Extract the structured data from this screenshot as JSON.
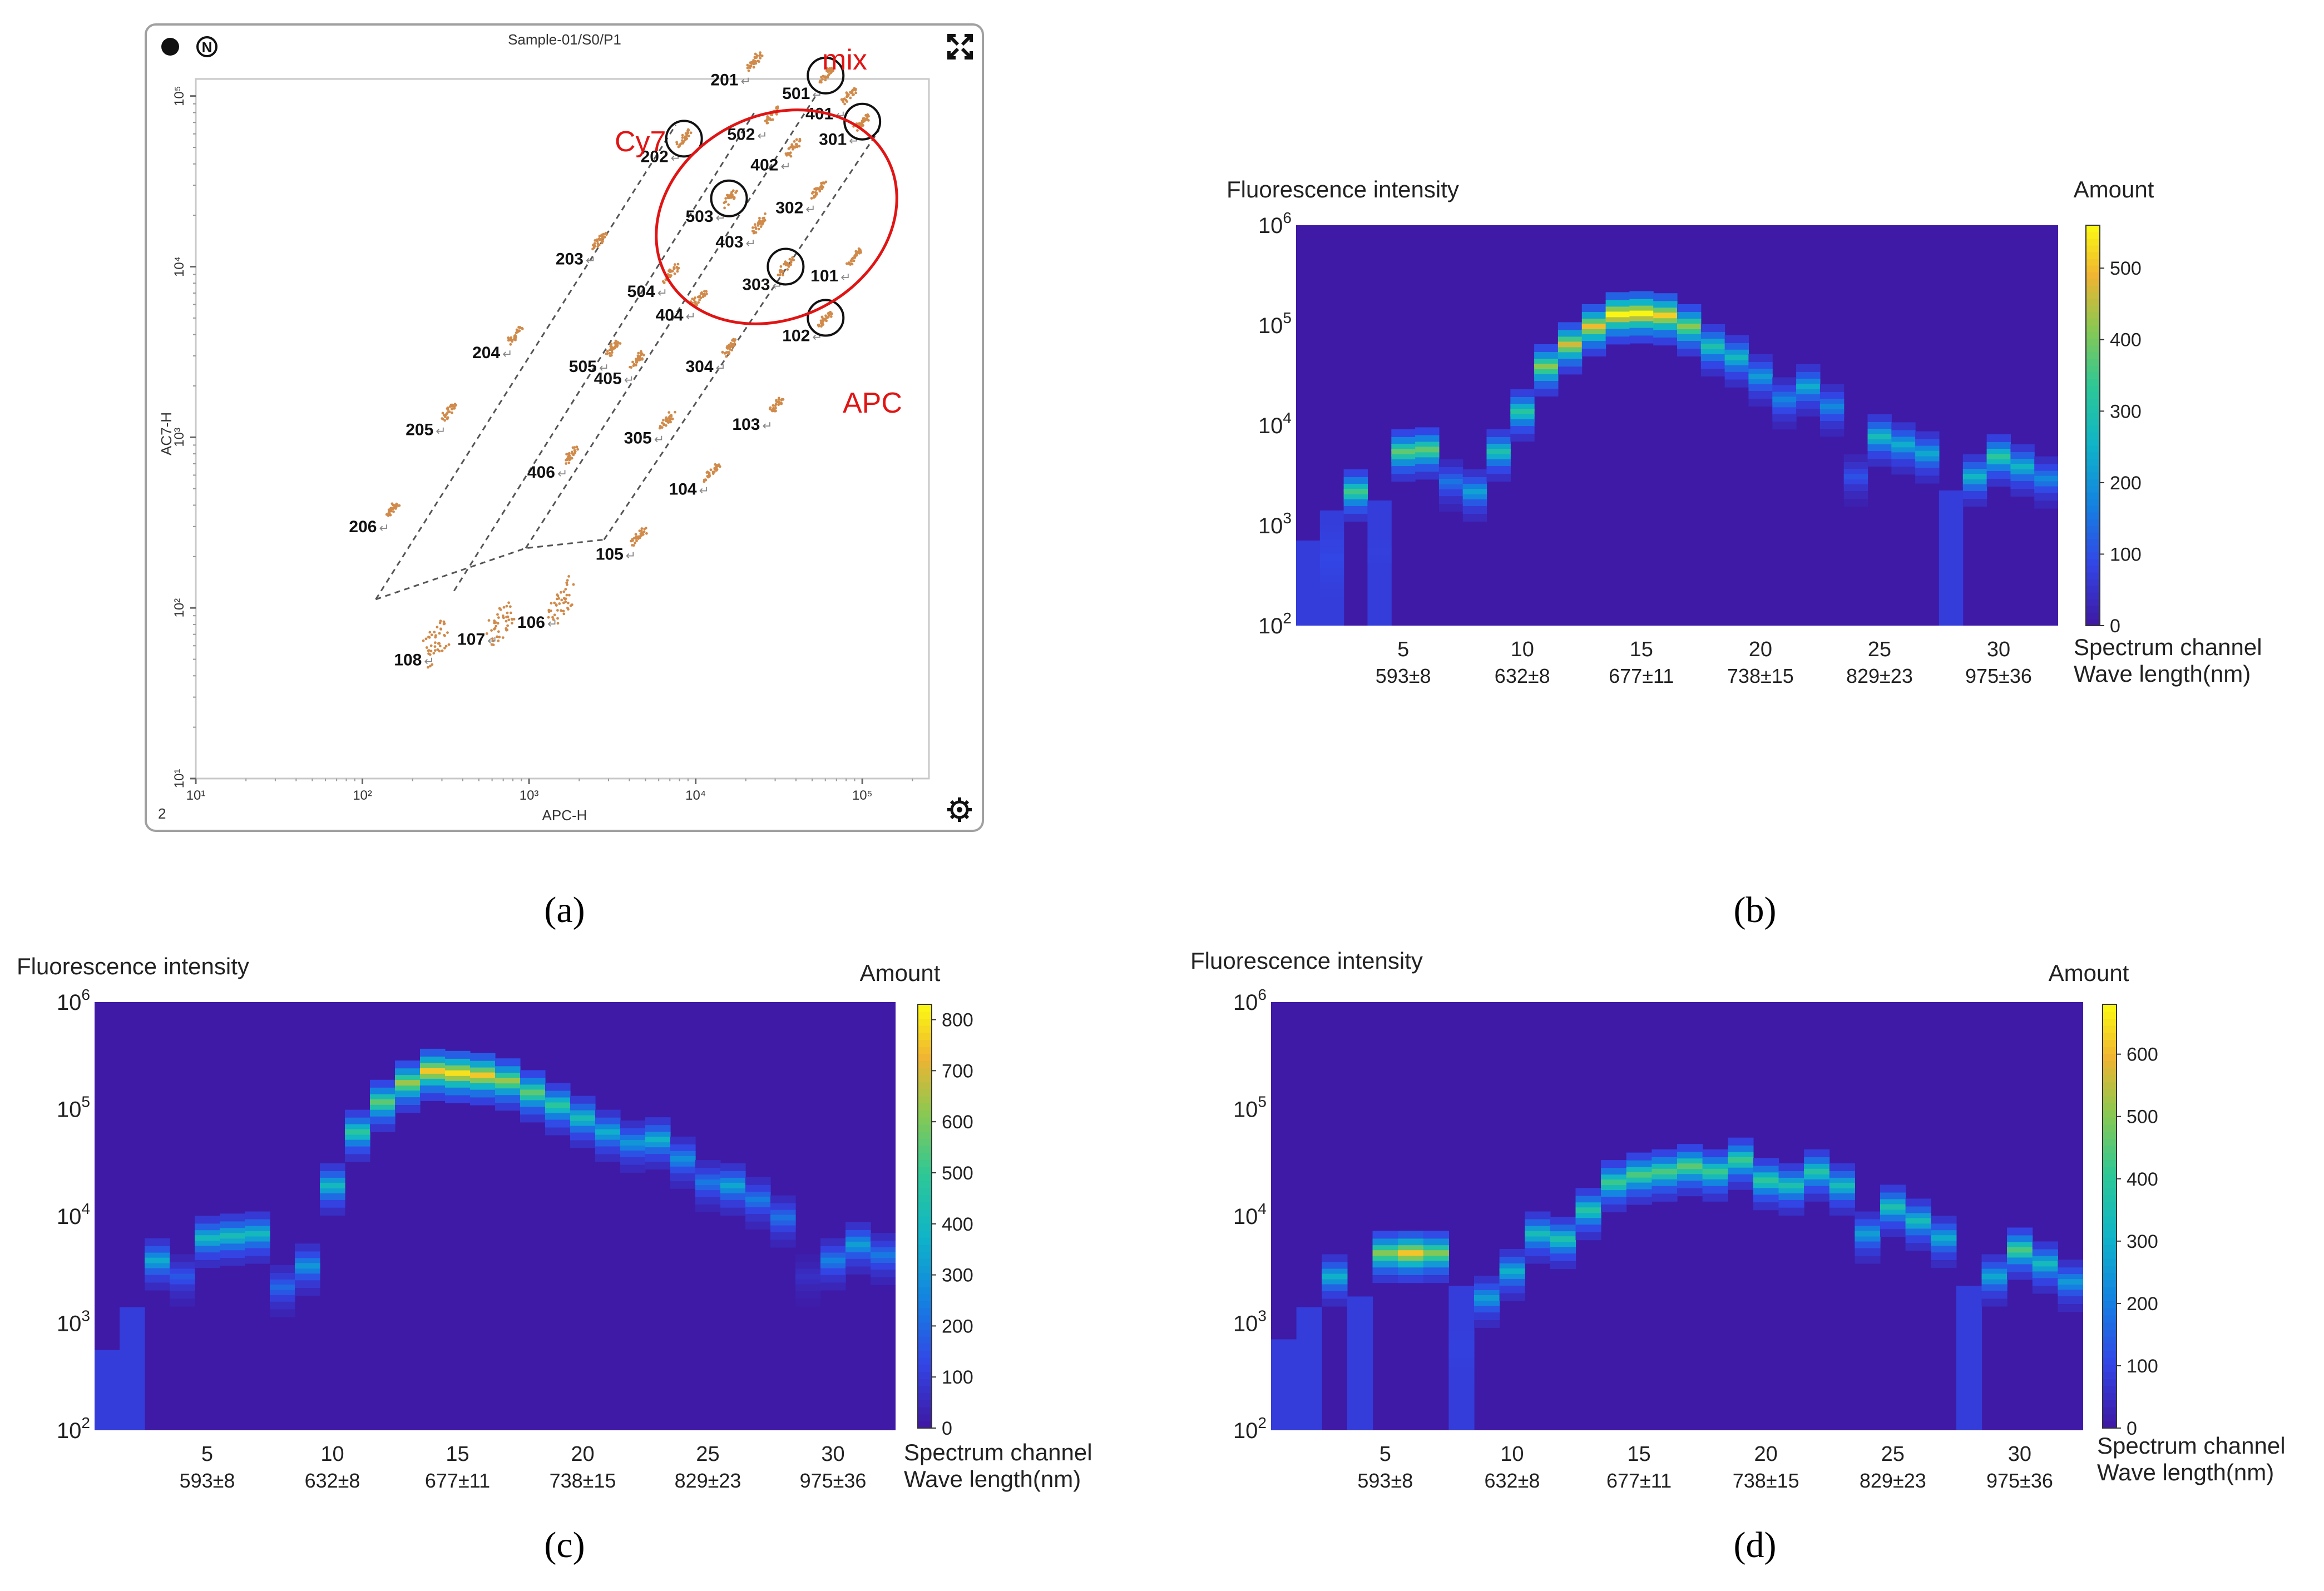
{
  "panel_labels": {
    "a": "(a)",
    "b": "(b)",
    "c": "(c)",
    "d": "(d)"
  },
  "colors": {
    "heat_bg": "#3e1aa6",
    "annotation_red": "#e11414",
    "scatter_dot": "#d08a4a",
    "frame": "#999999"
  },
  "chart_data": [
    {
      "id": "a",
      "type": "scatter",
      "title": "Sample-01/S0/P1",
      "xlabel": "APC-H",
      "ylabel": "AC7-H",
      "xscale": "log",
      "yscale": "log",
      "xlim_log10": [
        1,
        5.4
      ],
      "ylim_log10": [
        1,
        5.1
      ],
      "x_ticks": [
        "10¹",
        "10²",
        "10³",
        "10⁴",
        "10⁵"
      ],
      "y_ticks": [
        "10¹",
        "10²",
        "10³",
        "10⁴",
        "10⁵"
      ],
      "corner_label": "2",
      "header_icons": [
        "record-dot-icon",
        "n-badge-icon",
        "expand-icon"
      ],
      "footer_icons": [
        "gear-icon"
      ],
      "annotations": [
        {
          "text": "Cy7",
          "color": "red"
        },
        {
          "text": "mix",
          "color": "red"
        },
        {
          "text": "APC",
          "color": "red"
        }
      ],
      "clusters": [
        {
          "label": "101",
          "x": 4.95,
          "y": 4.05
        },
        {
          "label": "102",
          "x": 4.78,
          "y": 3.7
        },
        {
          "label": "103",
          "x": 4.48,
          "y": 3.18
        },
        {
          "label": "104",
          "x": 4.1,
          "y": 2.8
        },
        {
          "label": "105",
          "x": 3.66,
          "y": 2.42
        },
        {
          "label": "106",
          "x": 3.19,
          "y": 2.02
        },
        {
          "label": "107",
          "x": 2.83,
          "y": 1.92
        },
        {
          "label": "108",
          "x": 2.45,
          "y": 1.8
        },
        {
          "label": "201",
          "x": 4.35,
          "y": 5.2
        },
        {
          "label": "202",
          "x": 3.93,
          "y": 4.75
        },
        {
          "label": "203",
          "x": 3.42,
          "y": 4.15
        },
        {
          "label": "204",
          "x": 2.92,
          "y": 3.6
        },
        {
          "label": "205",
          "x": 2.52,
          "y": 3.15
        },
        {
          "label": "206",
          "x": 2.18,
          "y": 2.58
        },
        {
          "label": "301",
          "x": 5.0,
          "y": 4.85
        },
        {
          "label": "302",
          "x": 4.74,
          "y": 4.45
        },
        {
          "label": "303",
          "x": 4.54,
          "y": 4.0
        },
        {
          "label": "304",
          "x": 4.2,
          "y": 3.52
        },
        {
          "label": "305",
          "x": 3.83,
          "y": 3.1
        },
        {
          "label": "401",
          "x": 4.92,
          "y": 5.0
        },
        {
          "label": "402",
          "x": 4.59,
          "y": 4.7
        },
        {
          "label": "403",
          "x": 4.38,
          "y": 4.25
        },
        {
          "label": "404",
          "x": 4.02,
          "y": 3.82
        },
        {
          "label": "405",
          "x": 3.65,
          "y": 3.45
        },
        {
          "label": "406",
          "x": 3.25,
          "y": 2.9
        },
        {
          "label": "501",
          "x": 4.78,
          "y": 5.12
        },
        {
          "label": "502",
          "x": 4.45,
          "y": 4.88
        },
        {
          "label": "503",
          "x": 4.2,
          "y": 4.4
        },
        {
          "label": "504",
          "x": 3.85,
          "y": 3.96
        },
        {
          "label": "505",
          "x": 3.5,
          "y": 3.52
        }
      ]
    },
    {
      "id": "b",
      "type": "heatmap",
      "title": "Fluorescence intensity",
      "xlabel": "Spectrum channel",
      "xlabel2": "Wave length(nm)",
      "colorbar_label": "Amount",
      "y_ticks": [
        {
          "base": "10",
          "exp": "2"
        },
        {
          "base": "10",
          "exp": "3"
        },
        {
          "base": "10",
          "exp": "4"
        },
        {
          "base": "10",
          "exp": "5"
        },
        {
          "base": "10",
          "exp": "6"
        }
      ],
      "ylim_log10": [
        2,
        6
      ],
      "x_ticks": [
        "5",
        "10",
        "15",
        "20",
        "25",
        "30"
      ],
      "x_ticks2": [
        "593±8",
        "632±8",
        "677±11",
        "738±15",
        "829±23",
        "975±36"
      ],
      "colorbar_ticks": [
        "0",
        "100",
        "200",
        "300",
        "400",
        "500"
      ],
      "colorbar_max": 560,
      "channels": 32,
      "log_intensity": [
        2.5,
        2.8,
        3.3,
        2.9,
        3.7,
        3.72,
        3.4,
        3.3,
        3.7,
        4.1,
        4.55,
        4.77,
        4.95,
        5.07,
        5.08,
        5.06,
        4.95,
        4.75,
        4.64,
        4.45,
        4.22,
        4.35,
        4.15,
        3.45,
        3.85,
        3.77,
        3.68,
        3.0,
        3.45,
        3.65,
        3.55,
        3.43
      ],
      "peak_amount": [
        70,
        140,
        350,
        120,
        380,
        380,
        150,
        220,
        300,
        320,
        420,
        470,
        500,
        560,
        560,
        520,
        420,
        300,
        270,
        210,
        170,
        240,
        180,
        100,
        280,
        240,
        230,
        70,
        260,
        330,
        260,
        180
      ]
    },
    {
      "id": "c",
      "type": "heatmap",
      "title": "Fluorescence intensity",
      "xlabel": "Spectrum channel",
      "xlabel2": "Wave length(nm)",
      "colorbar_label": "Amount",
      "y_ticks": [
        {
          "base": "10",
          "exp": "2"
        },
        {
          "base": "10",
          "exp": "3"
        },
        {
          "base": "10",
          "exp": "4"
        },
        {
          "base": "10",
          "exp": "5"
        },
        {
          "base": "10",
          "exp": "6"
        }
      ],
      "ylim_log10": [
        2,
        6
      ],
      "x_ticks": [
        "5",
        "10",
        "15",
        "20",
        "25",
        "30"
      ],
      "x_ticks2": [
        "593±8",
        "632±8",
        "677±11",
        "738±15",
        "829±23",
        "975±36"
      ],
      "colorbar_ticks": [
        "0",
        "100",
        "200",
        "300",
        "400",
        "500",
        "600",
        "700",
        "800"
      ],
      "colorbar_max": 830,
      "channels": 32,
      "log_intensity": [
        2.4,
        2.8,
        3.55,
        3.4,
        3.76,
        3.78,
        3.8,
        3.3,
        3.5,
        4.25,
        4.75,
        5.03,
        5.21,
        5.32,
        5.3,
        5.28,
        5.23,
        5.12,
        5.0,
        4.88,
        4.75,
        4.65,
        4.68,
        4.5,
        4.28,
        4.25,
        4.12,
        3.95,
        3.4,
        3.55,
        3.7,
        3.6
      ],
      "peak_amount": [
        40,
        110,
        350,
        160,
        400,
        420,
        400,
        200,
        300,
        400,
        480,
        560,
        640,
        760,
        800,
        760,
        640,
        560,
        480,
        420,
        360,
        300,
        380,
        280,
        230,
        340,
        240,
        220,
        60,
        250,
        320,
        230
      ]
    },
    {
      "id": "d",
      "type": "heatmap",
      "title": "Fluorescence intensity",
      "xlabel": "Spectrum channel",
      "xlabel2": "Wave length(nm)",
      "colorbar_label": "Amount",
      "y_ticks": [
        {
          "base": "10",
          "exp": "2"
        },
        {
          "base": "10",
          "exp": "3"
        },
        {
          "base": "10",
          "exp": "4"
        },
        {
          "base": "10",
          "exp": "5"
        },
        {
          "base": "10",
          "exp": "6"
        }
      ],
      "ylim_log10": [
        2,
        6
      ],
      "x_ticks": [
        "5",
        "10",
        "15",
        "20",
        "25",
        "30"
      ],
      "x_ticks2": [
        "593±8",
        "632±8",
        "677±11",
        "738±15",
        "829±23",
        "975±36"
      ],
      "colorbar_ticks": [
        "0",
        "100",
        "200",
        "300",
        "400",
        "500",
        "600"
      ],
      "colorbar_max": 680,
      "channels": 32,
      "log_intensity": [
        2.5,
        2.8,
        3.4,
        2.9,
        3.62,
        3.62,
        3.62,
        3.0,
        3.2,
        3.45,
        3.8,
        3.75,
        4.02,
        4.28,
        4.35,
        4.38,
        4.43,
        4.38,
        4.49,
        4.3,
        4.25,
        4.38,
        4.25,
        3.8,
        4.05,
        3.92,
        3.76,
        3.0,
        3.4,
        3.65,
        3.52,
        3.35
      ],
      "peak_amount": [
        60,
        100,
        300,
        100,
        500,
        620,
        500,
        150,
        260,
        300,
        340,
        360,
        380,
        420,
        440,
        440,
        460,
        420,
        420,
        400,
        360,
        380,
        340,
        260,
        360,
        340,
        290,
        60,
        280,
        440,
        330,
        250
      ]
    }
  ]
}
